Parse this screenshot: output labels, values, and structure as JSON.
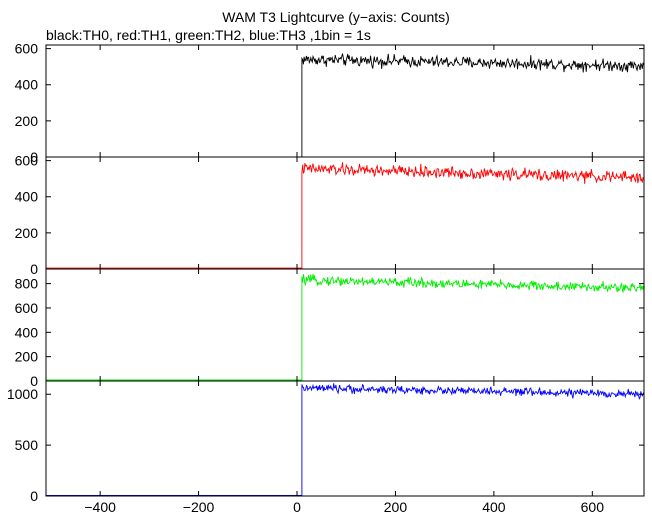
{
  "figure": {
    "title": "WAM T3 Lightcurve (y−axis: Counts)",
    "subtitle": "black:TH0, red:TH1, green:TH2, blue:TH3 ,1bin = 1s"
  },
  "chart_data": [
    {
      "type": "line",
      "panel": "TH0",
      "color": "#000000",
      "xlim": [
        -510,
        705
      ],
      "ylim": [
        0,
        620
      ],
      "x_ticks": [
        -400,
        -200,
        0,
        200,
        400,
        600
      ],
      "x_tick_labels": [
        "",
        "",
        "",
        "",
        "",
        ""
      ],
      "y_ticks": [
        0,
        200,
        400,
        600
      ],
      "y_tick_labels": [
        "0",
        "200",
        "400",
        "600"
      ],
      "pre_trigger_level": 0,
      "trigger_x": 10,
      "post_level_start": 540,
      "post_level_end": 505,
      "noise_amplitude": 25
    },
    {
      "type": "line",
      "panel": "TH1",
      "color": "#ff0000",
      "xlim": [
        -510,
        705
      ],
      "ylim": [
        0,
        620
      ],
      "x_ticks": [
        -400,
        -200,
        0,
        200,
        400,
        600
      ],
      "x_tick_labels": [
        "",
        "",
        "",
        "",
        "",
        ""
      ],
      "y_ticks": [
        0,
        200,
        400,
        600
      ],
      "y_tick_labels": [
        "0",
        "200",
        "400",
        "600"
      ],
      "pre_trigger_level": 5,
      "trigger_x": 10,
      "post_level_start": 555,
      "post_level_end": 505,
      "noise_amplitude": 25
    },
    {
      "type": "line",
      "panel": "TH2",
      "color": "#00ee00",
      "xlim": [
        -510,
        705
      ],
      "ylim": [
        0,
        920
      ],
      "x_ticks": [
        -400,
        -200,
        0,
        200,
        400,
        600
      ],
      "x_tick_labels": [
        "",
        "",
        "",
        "",
        "",
        ""
      ],
      "y_ticks": [
        0,
        200,
        400,
        600,
        800
      ],
      "y_tick_labels": [
        "0",
        "200",
        "400",
        "600",
        "800"
      ],
      "pre_trigger_level": 8,
      "trigger_x": 10,
      "post_level_start": 830,
      "post_level_end": 760,
      "noise_amplitude": 30
    },
    {
      "type": "line",
      "panel": "TH3",
      "color": "#0000ff",
      "xlim": [
        -510,
        705
      ],
      "ylim": [
        0,
        1130
      ],
      "x_ticks": [
        -400,
        -200,
        0,
        200,
        400,
        600
      ],
      "x_tick_labels": [
        "−400",
        "−200",
        "0",
        "200",
        "400",
        "600"
      ],
      "y_ticks": [
        0,
        500,
        1000
      ],
      "y_tick_labels": [
        "0",
        "500",
        "1000"
      ],
      "pre_trigger_level": 5,
      "trigger_x": 10,
      "post_level_start": 1060,
      "post_level_end": 1000,
      "noise_amplitude": 30
    }
  ]
}
